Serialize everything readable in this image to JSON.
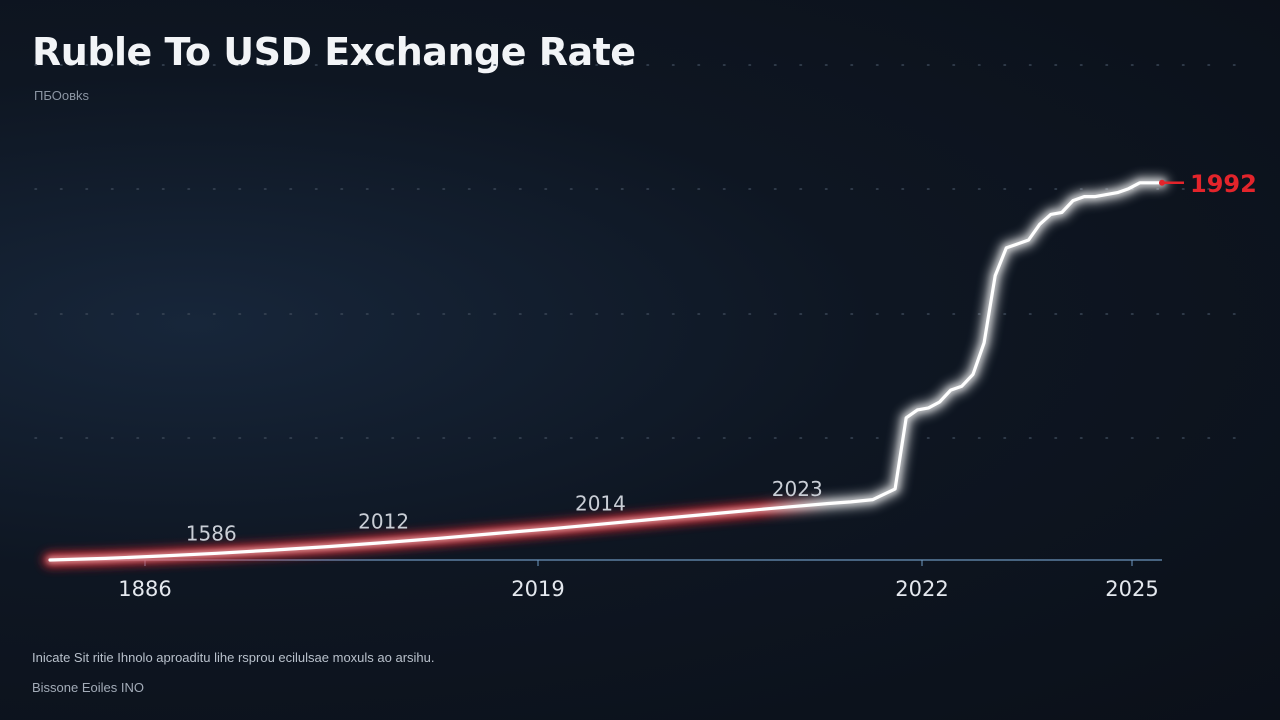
{
  "chart_data": {
    "type": "line",
    "title": "Ruble To USD Exchange Rate",
    "subtitle": "ПБОовks",
    "x_tick_labels": [
      "1886",
      "2019",
      "2022",
      "2025"
    ],
    "series": [
      {
        "x": [
          0.0,
          0.05,
          0.1,
          0.15,
          0.2,
          0.25,
          0.3,
          0.35,
          0.4,
          0.45,
          0.5,
          0.55,
          0.6,
          0.65,
          0.7,
          0.72,
          0.74,
          0.76,
          0.77,
          0.78,
          0.79,
          0.8,
          0.81,
          0.82,
          0.83,
          0.84,
          0.85,
          0.86,
          0.87,
          0.88,
          0.89,
          0.9,
          0.91,
          0.92,
          0.93,
          0.94,
          0.95,
          0.96,
          0.97,
          0.98,
          0.99,
          1.0
        ],
        "y": [
          0.0,
          0.004,
          0.01,
          0.017,
          0.025,
          0.034,
          0.044,
          0.055,
          0.067,
          0.079,
          0.092,
          0.105,
          0.118,
          0.131,
          0.143,
          0.147,
          0.153,
          0.18,
          0.36,
          0.38,
          0.385,
          0.4,
          0.43,
          0.44,
          0.47,
          0.55,
          0.72,
          0.79,
          0.8,
          0.81,
          0.85,
          0.875,
          0.88,
          0.91,
          0.92,
          0.92,
          0.925,
          0.93,
          0.94,
          0.955,
          0.955,
          0.955
        ]
      }
    ],
    "annotations": [
      {
        "label": "1586",
        "x": 0.145,
        "y": 0.05
      },
      {
        "label": "2012",
        "x": 0.3,
        "y": 0.08
      },
      {
        "label": "2014",
        "x": 0.495,
        "y": 0.125
      },
      {
        "label": "2023",
        "x": 0.672,
        "y": 0.162
      }
    ],
    "end_label": "1992",
    "grid": "dotted horizontal",
    "colors": {
      "line": "#ffffff",
      "glow": "#e0252e",
      "axis": "#6f9ac2",
      "end_label": "#e3242b"
    }
  },
  "footnote": "Inicate Sit ritie Ihnolo aproaditu lihe rsprou ecilulsae moxuls ao arsihu.",
  "source": "Bissone Eoiles INO"
}
